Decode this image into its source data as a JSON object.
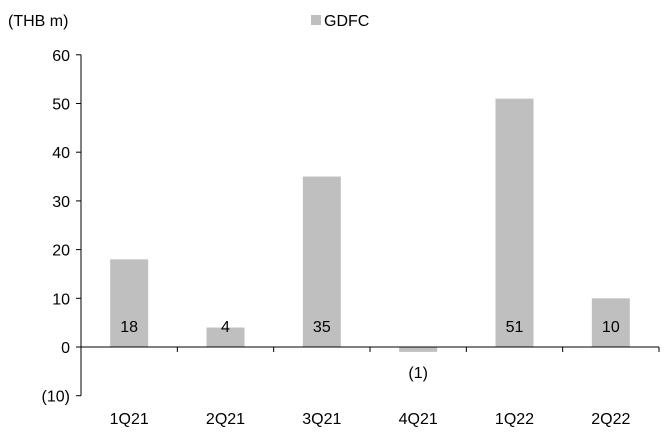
{
  "chart_data": {
    "type": "bar",
    "unit_label": "(THB m)",
    "legend": {
      "position": "top-center",
      "entries": [
        "GDFC"
      ]
    },
    "categories": [
      "1Q21",
      "2Q21",
      "3Q21",
      "4Q21",
      "1Q22",
      "2Q22"
    ],
    "series": [
      {
        "name": "GDFC",
        "values": [
          18,
          4,
          35,
          -1,
          51,
          10
        ],
        "labels": [
          "18",
          "4",
          "35",
          "(1)",
          "51",
          "10"
        ],
        "color": "#bfbfbf"
      }
    ],
    "yticks": [
      60,
      50,
      40,
      30,
      20,
      10,
      0,
      -10
    ],
    "ytick_labels": [
      "60",
      "50",
      "40",
      "30",
      "20",
      "10",
      "0",
      "(10)"
    ],
    "ylim": [
      -10,
      60
    ],
    "grid": false,
    "axis_color": "#000000"
  }
}
